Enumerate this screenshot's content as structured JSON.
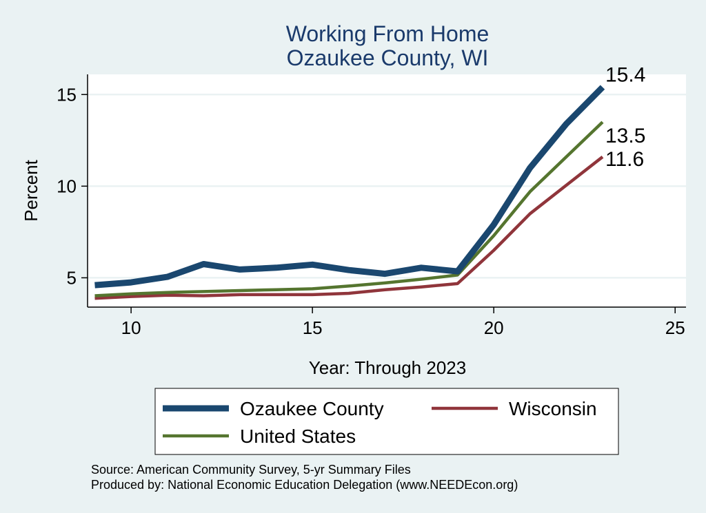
{
  "chart_data": {
    "type": "line",
    "title": [
      "Working From Home",
      "Ozaukee County, WI"
    ],
    "xlabel": "Year: Through 2023",
    "ylabel": "Percent",
    "xlim": [
      8.8,
      25.3
    ],
    "ylim": [
      3.4,
      16.1
    ],
    "xticks": [
      10,
      15,
      20,
      25
    ],
    "yticks": [
      5,
      10,
      15
    ],
    "grid": true,
    "legend_position": "bottom",
    "x": [
      9,
      10,
      11,
      12,
      13,
      14,
      15,
      16,
      17,
      18,
      19,
      20,
      21,
      22,
      23
    ],
    "series": [
      {
        "name": "Ozaukee County",
        "color": "#1a476f",
        "values": [
          4.6,
          4.75,
          5.05,
          5.75,
          5.45,
          5.55,
          5.72,
          5.42,
          5.22,
          5.55,
          5.35,
          7.9,
          11.0,
          13.4,
          15.4
        ],
        "end_label": "15.4"
      },
      {
        "name": "Wisconsin",
        "color": "#90353b",
        "values": [
          3.88,
          3.98,
          4.05,
          4.02,
          4.08,
          4.08,
          4.08,
          4.15,
          4.35,
          4.5,
          4.68,
          6.5,
          8.5,
          10.05,
          11.6
        ],
        "end_label": "11.6"
      },
      {
        "name": "United States",
        "color": "#55752f",
        "values": [
          4.02,
          4.12,
          4.2,
          4.25,
          4.3,
          4.35,
          4.4,
          4.55,
          4.72,
          4.92,
          5.15,
          7.3,
          9.7,
          11.6,
          13.5
        ],
        "end_label": "13.5"
      }
    ],
    "legend": [
      "Ozaukee County",
      "Wisconsin",
      "United States"
    ]
  },
  "notes": {
    "source": "Source: American Community Survey, 5-yr Summary Files",
    "producer": "Produced by: National Economic Education Delegation (www.NEEDEcon.org)"
  },
  "colors": {
    "background": "#eaf2f3",
    "plot_background": "#ffffff",
    "grid": "#eaf2f3",
    "title": "#1a3a6b"
  }
}
